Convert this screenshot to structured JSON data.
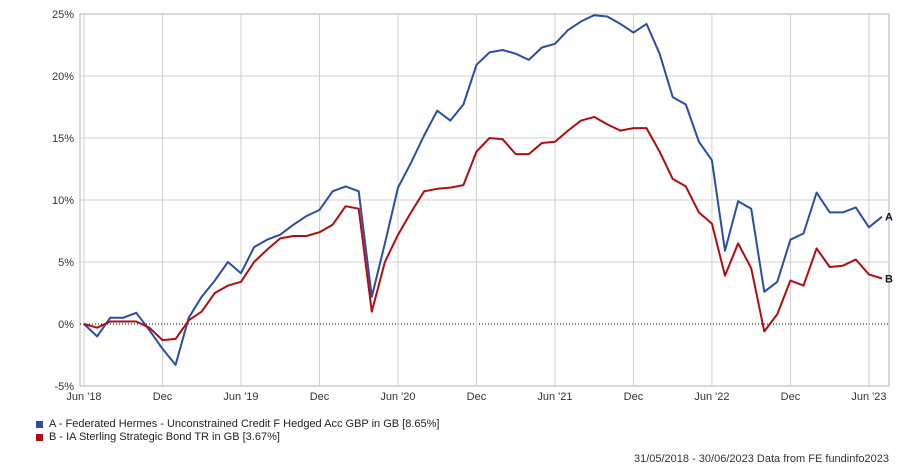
{
  "chart_data": {
    "type": "line",
    "x_ticks": [
      "Jun '18",
      "Dec",
      "Jun '19",
      "Dec",
      "Jun '20",
      "Dec",
      "Jun '21",
      "Dec",
      "Jun '22",
      "Dec",
      "Jun '23"
    ],
    "y_ticks": [
      "-5%",
      "0%",
      "5%",
      "10%",
      "15%",
      "20%",
      "25%"
    ],
    "ylim": [
      -5,
      25
    ],
    "y_unit": "%",
    "x_range_months": [
      0,
      61
    ],
    "x_tick_months": [
      0,
      6,
      12,
      18,
      24,
      30,
      36,
      42,
      48,
      54,
      60
    ],
    "grid": true,
    "series": [
      {
        "name": "A - Federated Hermes - Unconstrained Credit F Hedged Acc GBP in GB [8.65%]",
        "end_label": "A",
        "color": "#2b4ea2",
        "x": [
          0,
          1,
          2,
          3,
          4,
          5,
          6,
          7,
          8,
          9,
          10,
          11,
          12,
          13,
          14,
          15,
          16,
          17,
          18,
          19,
          20,
          21,
          22,
          23,
          24,
          25,
          26,
          27,
          28,
          29,
          30,
          31,
          32,
          33,
          34,
          35,
          36,
          37,
          38,
          39,
          40,
          41,
          42,
          43,
          44,
          45,
          46,
          47,
          48,
          49,
          50,
          51,
          52,
          53,
          54,
          55,
          56,
          57,
          58,
          59,
          60,
          61
        ],
        "values": [
          0,
          -1.0,
          0.5,
          0.5,
          0.9,
          -0.5,
          -2.0,
          -3.3,
          0.5,
          2.2,
          3.5,
          5.0,
          4.1,
          6.2,
          6.8,
          7.2,
          8.0,
          8.7,
          9.2,
          10.7,
          11.1,
          10.7,
          2.2,
          6.5,
          11.0,
          13.0,
          15.2,
          17.2,
          16.4,
          17.7,
          20.9,
          21.9,
          22.1,
          21.8,
          21.3,
          22.3,
          22.6,
          23.7,
          24.4,
          24.9,
          24.8,
          24.2,
          23.5,
          24.2,
          21.8,
          18.3,
          17.7,
          14.7,
          13.2,
          5.9,
          9.9,
          9.3,
          2.6,
          3.4,
          6.8,
          7.3,
          10.6,
          9.0,
          9.0,
          9.4,
          7.8,
          8.65
        ]
      },
      {
        "name": "B - IA Sterling Strategic Bond TR in GB [3.67%]",
        "end_label": "B",
        "color": "#b00d12",
        "x": [
          0,
          1,
          2,
          3,
          4,
          5,
          6,
          7,
          8,
          9,
          10,
          11,
          12,
          13,
          14,
          15,
          16,
          17,
          18,
          19,
          20,
          21,
          22,
          23,
          24,
          25,
          26,
          27,
          28,
          29,
          30,
          31,
          32,
          33,
          34,
          35,
          36,
          37,
          38,
          39,
          40,
          41,
          42,
          43,
          44,
          45,
          46,
          47,
          48,
          49,
          50,
          51,
          52,
          53,
          54,
          55,
          56,
          57,
          58,
          59,
          60,
          61
        ],
        "values": [
          0,
          -0.3,
          0.2,
          0.2,
          0.2,
          -0.3,
          -1.3,
          -1.2,
          0.3,
          1.0,
          2.5,
          3.1,
          3.4,
          5.0,
          6.0,
          6.9,
          7.1,
          7.1,
          7.4,
          8.0,
          9.5,
          9.3,
          1.0,
          5.0,
          7.2,
          9.0,
          10.7,
          10.9,
          11.0,
          11.2,
          13.9,
          15.0,
          14.9,
          13.7,
          13.7,
          14.6,
          14.7,
          15.6,
          16.4,
          16.7,
          16.1,
          15.6,
          15.8,
          15.8,
          13.9,
          11.7,
          11.1,
          9.0,
          8.1,
          3.9,
          6.5,
          4.5,
          -0.6,
          0.8,
          3.5,
          3.1,
          6.1,
          4.6,
          4.7,
          5.2,
          4.0,
          3.67
        ]
      }
    ]
  },
  "footer": {
    "date_range": "31/05/2018 - 30/06/2023",
    "source": "Data from FE fundinfo2023"
  }
}
